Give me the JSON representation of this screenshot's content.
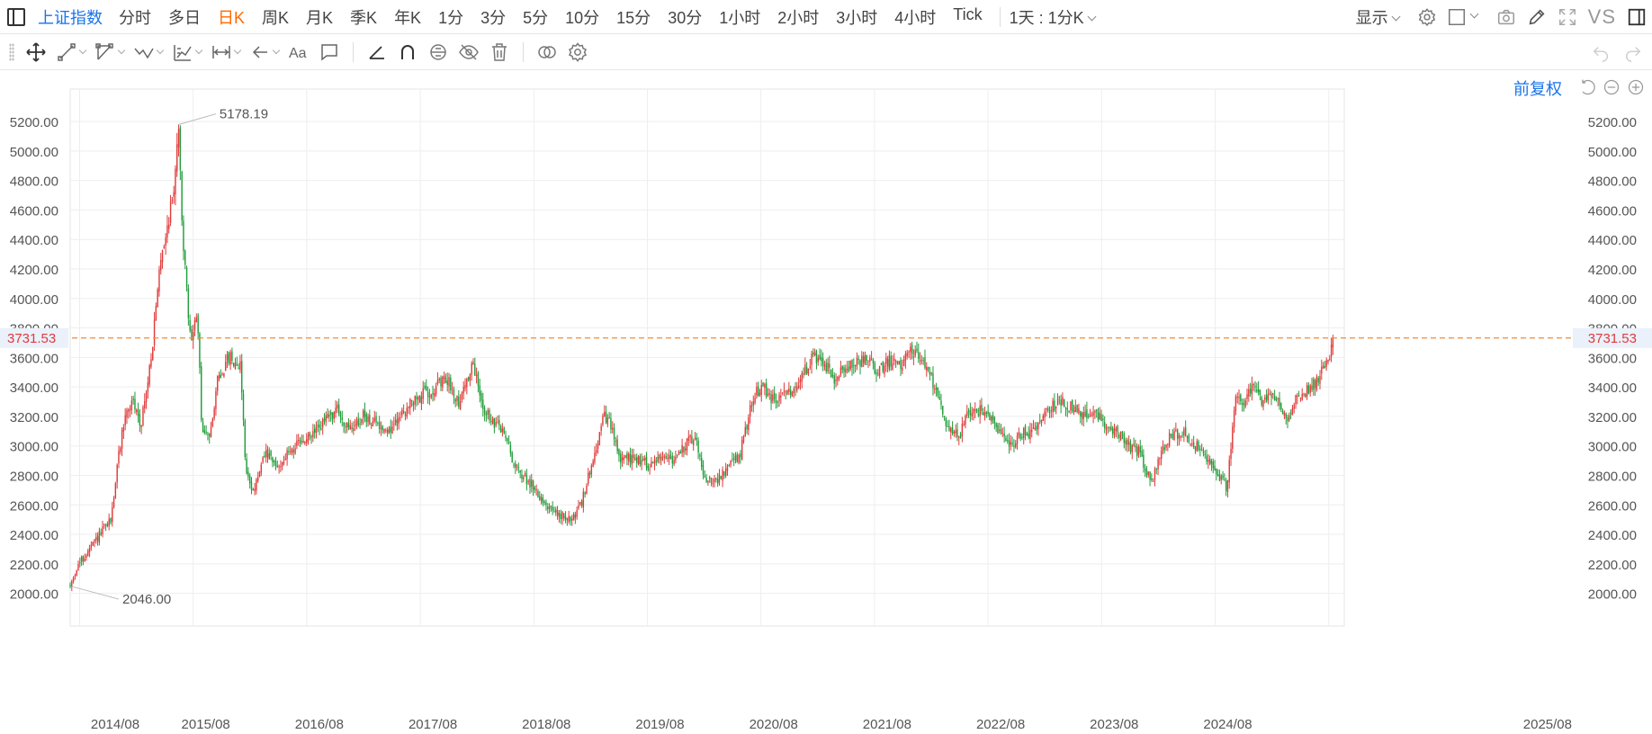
{
  "toolbar": {
    "symbol": "上证指数",
    "periods": [
      "分时",
      "多日",
      "日K",
      "周K",
      "月K",
      "季K",
      "年K",
      "1分",
      "3分",
      "5分",
      "10分",
      "15分",
      "30分",
      "1小时",
      "2小时",
      "3小时",
      "4小时",
      "Tick"
    ],
    "active_period": "日K",
    "custom_period": "1天 : 1分K",
    "display_label": "显示",
    "vs_label": "VS"
  },
  "draw_toolbar": {
    "tools": [
      "move-tool",
      "line-tool",
      "polyline-tool",
      "wave-tool",
      "fib-tool",
      "measure-tool",
      "arrow-tool",
      "text-tool",
      "note-tool",
      "angle-tool",
      "magnet-tool",
      "lock-tool",
      "hide-tool",
      "delete-tool",
      "overlay-tool",
      "settings-tool"
    ]
  },
  "chart": {
    "adjust_label": "前复权",
    "current_price_label": "3731.53",
    "high_label": "5178.19",
    "low_label": "2046.00",
    "colors": {
      "up": "#e03a3a",
      "down": "#1f9d3a",
      "price_line": "#f08c3a",
      "grid": "#eeeeee",
      "axis_text": "#555555",
      "accent": "#1a73e8",
      "active": "#ff6a00"
    }
  },
  "chart_data": {
    "type": "candlestick",
    "y_ticks": [
      2000,
      2200,
      2400,
      2600,
      2800,
      3000,
      3200,
      3400,
      3600,
      3800,
      4000,
      4200,
      4400,
      4600,
      4800,
      5000,
      5200
    ],
    "y_tick_labels": [
      "2000.00",
      "2200.00",
      "2400.00",
      "2600.00",
      "2800.00",
      "3000.00",
      "3200.00",
      "3400.00",
      "3600.00",
      "3800.00",
      "4000.00",
      "4200.00",
      "4400.00",
      "4600.00",
      "4800.00",
      "5000.00",
      "5200.00"
    ],
    "ylim": [
      1900,
      5420
    ],
    "x_tick_labels": [
      "2014/08",
      "2015/08",
      "2016/08",
      "2017/08",
      "2018/08",
      "2019/08",
      "2020/08",
      "2021/08",
      "2022/08",
      "2023/08",
      "2024/08",
      "2025/08"
    ],
    "x_ticks_year": [
      2014.583,
      2015.583,
      2016.583,
      2017.583,
      2018.583,
      2019.583,
      2020.583,
      2021.583,
      2022.583,
      2023.583,
      2024.583,
      2025.583
    ],
    "xlim_year": [
      2014.5,
      2025.72
    ],
    "current_price": 3731.53,
    "high": {
      "year": 2015.45,
      "value": 5178.19
    },
    "low": {
      "year": 2014.5,
      "value": 2046.0
    },
    "price_path": [
      [
        2014.5,
        2046
      ],
      [
        2014.56,
        2180
      ],
      [
        2014.62,
        2240
      ],
      [
        2014.7,
        2330
      ],
      [
        2014.78,
        2420
      ],
      [
        2014.86,
        2500
      ],
      [
        2014.92,
        2900
      ],
      [
        2014.98,
        3200
      ],
      [
        2015.05,
        3300
      ],
      [
        2015.12,
        3150
      ],
      [
        2015.18,
        3400
      ],
      [
        2015.24,
        3800
      ],
      [
        2015.3,
        4300
      ],
      [
        2015.36,
        4500
      ],
      [
        2015.42,
        4800
      ],
      [
        2015.45,
        5178
      ],
      [
        2015.5,
        4300
      ],
      [
        2015.56,
        3700
      ],
      [
        2015.62,
        3900
      ],
      [
        2015.66,
        3100
      ],
      [
        2015.72,
        3050
      ],
      [
        2015.8,
        3450
      ],
      [
        2015.9,
        3600
      ],
      [
        2016.0,
        3550
      ],
      [
        2016.05,
        2800
      ],
      [
        2016.12,
        2700
      ],
      [
        2016.22,
        2950
      ],
      [
        2016.32,
        2850
      ],
      [
        2016.45,
        2980
      ],
      [
        2016.6,
        3050
      ],
      [
        2016.72,
        3150
      ],
      [
        2016.85,
        3250
      ],
      [
        2016.95,
        3100
      ],
      [
        2017.08,
        3200
      ],
      [
        2017.2,
        3150
      ],
      [
        2017.32,
        3100
      ],
      [
        2017.45,
        3250
      ],
      [
        2017.6,
        3350
      ],
      [
        2017.72,
        3400
      ],
      [
        2017.82,
        3450
      ],
      [
        2017.92,
        3300
      ],
      [
        2018.05,
        3550
      ],
      [
        2018.12,
        3300
      ],
      [
        2018.22,
        3150
      ],
      [
        2018.32,
        3100
      ],
      [
        2018.42,
        2850
      ],
      [
        2018.55,
        2750
      ],
      [
        2018.65,
        2650
      ],
      [
        2018.75,
        2550
      ],
      [
        2018.84,
        2520
      ],
      [
        2018.92,
        2500
      ],
      [
        2019.0,
        2600
      ],
      [
        2019.1,
        2900
      ],
      [
        2019.2,
        3200
      ],
      [
        2019.25,
        3150
      ],
      [
        2019.35,
        2900
      ],
      [
        2019.48,
        2920
      ],
      [
        2019.6,
        2870
      ],
      [
        2019.72,
        2950
      ],
      [
        2019.82,
        2900
      ],
      [
        2019.92,
        3000
      ],
      [
        2020.0,
        3080
      ],
      [
        2020.08,
        2800
      ],
      [
        2020.18,
        2750
      ],
      [
        2020.3,
        2850
      ],
      [
        2020.4,
        2950
      ],
      [
        2020.52,
        3350
      ],
      [
        2020.6,
        3400
      ],
      [
        2020.7,
        3300
      ],
      [
        2020.8,
        3350
      ],
      [
        2020.9,
        3420
      ],
      [
        2021.02,
        3580
      ],
      [
        2021.12,
        3600
      ],
      [
        2021.22,
        3450
      ],
      [
        2021.32,
        3520
      ],
      [
        2021.42,
        3580
      ],
      [
        2021.52,
        3580
      ],
      [
        2021.6,
        3500
      ],
      [
        2021.72,
        3580
      ],
      [
        2021.82,
        3560
      ],
      [
        2021.92,
        3650
      ],
      [
        2022.0,
        3580
      ],
      [
        2022.12,
        3400
      ],
      [
        2022.22,
        3150
      ],
      [
        2022.32,
        3050
      ],
      [
        2022.4,
        3200
      ],
      [
        2022.48,
        3250
      ],
      [
        2022.58,
        3200
      ],
      [
        2022.68,
        3100
      ],
      [
        2022.78,
        3000
      ],
      [
        2022.88,
        3080
      ],
      [
        2022.98,
        3100
      ],
      [
        2023.1,
        3250
      ],
      [
        2023.22,
        3300
      ],
      [
        2023.32,
        3260
      ],
      [
        2023.42,
        3200
      ],
      [
        2023.52,
        3250
      ],
      [
        2023.62,
        3150
      ],
      [
        2023.72,
        3100
      ],
      [
        2023.82,
        3000
      ],
      [
        2023.92,
        2950
      ],
      [
        2024.02,
        2750
      ],
      [
        2024.08,
        2900
      ],
      [
        2024.18,
        3050
      ],
      [
        2024.3,
        3100
      ],
      [
        2024.42,
        3000
      ],
      [
        2024.52,
        2900
      ],
      [
        2024.62,
        2800
      ],
      [
        2024.68,
        2720
      ],
      [
        2024.72,
        2950
      ],
      [
        2024.76,
        3350
      ],
      [
        2024.82,
        3300
      ],
      [
        2024.92,
        3400
      ],
      [
        2025.0,
        3300
      ],
      [
        2025.1,
        3350
      ],
      [
        2025.18,
        3250
      ],
      [
        2025.22,
        3150
      ],
      [
        2025.3,
        3350
      ],
      [
        2025.4,
        3380
      ],
      [
        2025.48,
        3450
      ],
      [
        2025.55,
        3550
      ],
      [
        2025.6,
        3650
      ],
      [
        2025.62,
        3731
      ]
    ]
  }
}
